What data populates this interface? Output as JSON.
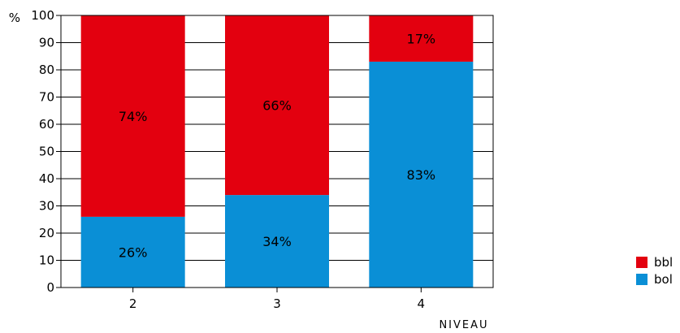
{
  "chart_data": {
    "type": "bar",
    "stacked": true,
    "categories": [
      "2",
      "3",
      "4"
    ],
    "series": [
      {
        "name": "bol",
        "values": [
          26,
          34,
          83
        ],
        "labels": [
          "26%",
          "34%",
          "83%"
        ],
        "color": "#0a8fd6"
      },
      {
        "name": "bbl",
        "values": [
          74,
          66,
          17
        ],
        "labels": [
          "74%",
          "66%",
          "17%"
        ],
        "color": "#e3000f"
      }
    ],
    "ylabel": "%",
    "xlabel": "NIVEAU",
    "ylim": [
      0,
      100
    ],
    "yticks": [
      0,
      10,
      20,
      30,
      40,
      50,
      60,
      70,
      80,
      90,
      100
    ],
    "grid": true,
    "legend": {
      "position": "right-bottom",
      "items": [
        {
          "name": "bbl",
          "color": "#e3000f"
        },
        {
          "name": "bol",
          "color": "#0a8fd6"
        }
      ]
    }
  }
}
